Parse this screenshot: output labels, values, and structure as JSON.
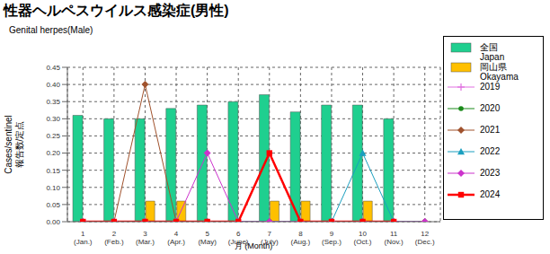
{
  "chart_data": {
    "type": "bar",
    "title": "性器ヘルペスウイルス感染症(男性)",
    "subtitle": "Genital herpes(Male)",
    "y_label": "Cases/sentinel",
    "y_label_ja": "報告数/定点",
    "x_label": "月 (Month)",
    "categories": [
      "1 (Jan.)",
      "2 (Feb.)",
      "3 (Mar.)",
      "4 (Apr.)",
      "5 (May)",
      "6 (June)",
      "7 (July)",
      "8 (Aug.)",
      "9 (Sep.)",
      "10 (Oct.)",
      "11 (Nov.)",
      "12 (Dec.)"
    ],
    "series": [
      {
        "name": "全国 Japan",
        "type": "bar",
        "color": "#1fcf8f",
        "values": [
          0.31,
          0.3,
          0.3,
          0.33,
          0.34,
          0.35,
          0.37,
          0.32,
          0.34,
          0.34,
          0.3,
          null
        ]
      },
      {
        "name": "岡山県 Okayama",
        "type": "bar",
        "color": "#ffc000",
        "values": [
          0,
          0,
          0.06,
          0.06,
          0,
          0,
          0.06,
          0.06,
          0,
          0.06,
          0,
          null
        ]
      },
      {
        "name": "2019",
        "type": "line",
        "color": "#e070e0",
        "marker": "plus",
        "values": [
          0,
          0,
          0,
          0,
          0,
          0,
          0,
          0,
          0,
          0,
          0,
          0
        ]
      },
      {
        "name": "2020",
        "type": "line",
        "color": "#1a8a1a",
        "marker": "circle",
        "values": [
          0,
          0,
          0,
          0,
          0,
          0,
          0,
          0,
          0,
          0,
          0,
          0
        ]
      },
      {
        "name": "2021",
        "type": "line",
        "color": "#a0522d",
        "marker": "diamond",
        "values": [
          0,
          0,
          0.4,
          0,
          0,
          0,
          0,
          0,
          0,
          0,
          0,
          0
        ]
      },
      {
        "name": "2022",
        "type": "line",
        "color": "#1a9fbf",
        "marker": "triangle",
        "values": [
          0,
          0,
          0,
          0,
          0,
          0,
          0,
          0,
          0,
          0.2,
          0,
          0
        ]
      },
      {
        "name": "2023",
        "type": "line",
        "color": "#cc33cc",
        "marker": "diamond",
        "values": [
          0,
          0,
          0,
          0,
          0.2,
          0,
          0,
          0,
          0,
          0,
          0,
          0
        ]
      },
      {
        "name": "2024",
        "type": "line",
        "color": "#ff0000",
        "marker": "square",
        "values": [
          0,
          0,
          0,
          0,
          0,
          0,
          0.2,
          0,
          0,
          0,
          0,
          null
        ]
      }
    ],
    "ylim": [
      0,
      0.45
    ],
    "yticks": [
      {
        "value": 0,
        "label": "0.00"
      },
      0.05,
      {
        "value": 0.1,
        "label": "0.10"
      },
      0.15,
      {
        "value": 0.2,
        "label": "0.20"
      },
      0.25,
      {
        "value": 0.3,
        "label": "0.30"
      },
      0.35,
      {
        "value": 0.4,
        "label": "0.40"
      },
      0.45
    ],
    "grid": true,
    "legend": "right"
  }
}
